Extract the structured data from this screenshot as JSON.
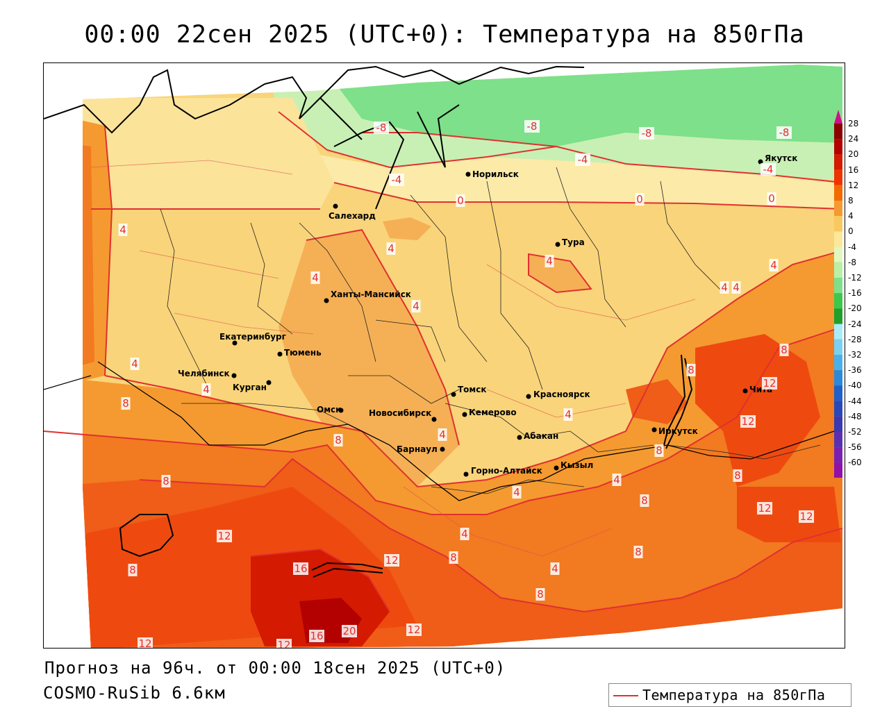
{
  "title": "00:00 22сен 2025 (UTC+0): Температура на 850гПа",
  "footer": {
    "forecast": "Прогноз на 96ч. от 00:00 18сен 2025 (UTC+0)",
    "model": "COSMO-RuSib 6.6км"
  },
  "legend": {
    "label": "Температура на 850гПа",
    "line_color": "#e03030"
  },
  "scale": {
    "labels": [
      "28",
      "24",
      "20",
      "16",
      "12",
      "8",
      "4",
      "0",
      "-4",
      "-8",
      "-12",
      "-16",
      "-20",
      "-24",
      "-28",
      "-32",
      "-36",
      "-40",
      "-44",
      "-48",
      "-52",
      "-56",
      "-60"
    ],
    "colors": [
      "#8b0000",
      "#b30000",
      "#d41a00",
      "#ee3300",
      "#f56a00",
      "#f59a30",
      "#f9c860",
      "#fbe898",
      "#e0f8c0",
      "#b8f0a8",
      "#7ee08a",
      "#3cc84a",
      "#1ea02a",
      "#a8ecf8",
      "#7ad0f0",
      "#4ab0e8",
      "#2c88d8",
      "#2060c8",
      "#2848b8",
      "#3c38b0",
      "#5a30b0",
      "#7a20b0",
      "#9010a8"
    ]
  },
  "cities": [
    {
      "name": "Норильск"
    },
    {
      "name": "Салехард"
    },
    {
      "name": "Тура"
    },
    {
      "name": "Якутск"
    },
    {
      "name": "Ханты-Мансийск"
    },
    {
      "name": "Екатеринбург"
    },
    {
      "name": "Тюмень"
    },
    {
      "name": "Челябинск"
    },
    {
      "name": "Курган"
    },
    {
      "name": "Омск"
    },
    {
      "name": "Новосибирск"
    },
    {
      "name": "Томск"
    },
    {
      "name": "Красноярск"
    },
    {
      "name": "Кемерово"
    },
    {
      "name": "Барнаул"
    },
    {
      "name": "Абакан"
    },
    {
      "name": "Горно-Алтайск"
    },
    {
      "name": "Кызыл"
    },
    {
      "name": "Иркутск"
    },
    {
      "name": "Чита"
    }
  ],
  "isolines": [
    "-8",
    "-8",
    "-8",
    "-8",
    "-4",
    "-4",
    "-4",
    "0",
    "0",
    "0",
    "4",
    "4",
    "4",
    "4",
    "4",
    "4",
    "4",
    "4",
    "4",
    "4",
    "4",
    "4",
    "4",
    "4",
    "4",
    "4",
    "8",
    "8",
    "8",
    "8",
    "8",
    "8",
    "8",
    "8",
    "8",
    "8",
    "8",
    "8",
    "12",
    "12",
    "12",
    "12",
    "12",
    "12",
    "12",
    "12",
    "12",
    "16",
    "16",
    "20"
  ]
}
